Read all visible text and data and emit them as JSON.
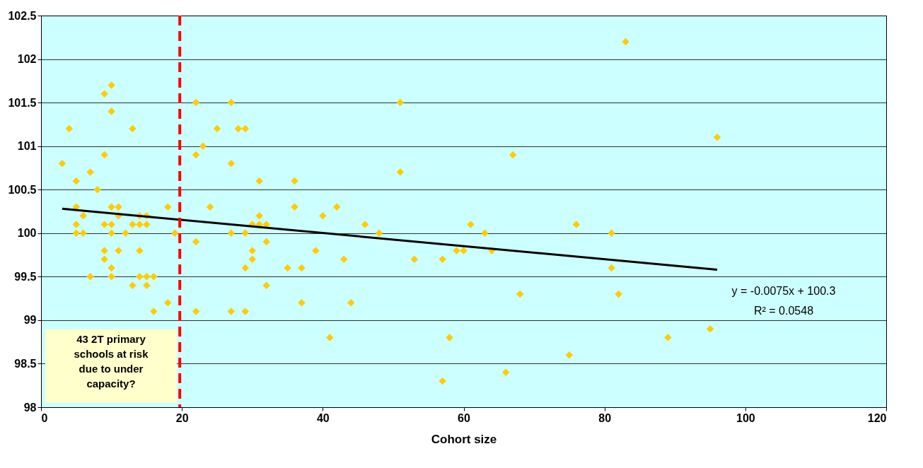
{
  "chart_data": {
    "type": "scatter",
    "xlabel": "Cohort size",
    "xlim": [
      0,
      120
    ],
    "xticks": [
      0,
      20,
      40,
      60,
      80,
      100,
      120
    ],
    "ylim": [
      98,
      102.5
    ],
    "yticks": [
      98,
      98.5,
      99,
      99.5,
      100,
      100.5,
      101,
      101.5,
      102,
      102.5
    ],
    "grid": "y",
    "marker": "diamond",
    "series": [
      {
        "color": "#ffcc00",
        "x": [
          3,
          4,
          5,
          5,
          5,
          5,
          6,
          6,
          7,
          7,
          8,
          9,
          9,
          9,
          9,
          9,
          10,
          10,
          10,
          10,
          10,
          10,
          10,
          11,
          11,
          11,
          12,
          13,
          13,
          13,
          14,
          14,
          14,
          14,
          15,
          15,
          15,
          15,
          16,
          16,
          18,
          18,
          19,
          22,
          22,
          22,
          22,
          23,
          24,
          25,
          27,
          27,
          27,
          27,
          28,
          29,
          29,
          29,
          29,
          30,
          30,
          30,
          31,
          31,
          31,
          32,
          32,
          32,
          35,
          36,
          36,
          37,
          37,
          39,
          40,
          41,
          42,
          43,
          44,
          46,
          48,
          51,
          51,
          53,
          57,
          57,
          58,
          59,
          60,
          61,
          63,
          64,
          66,
          67,
          68,
          75,
          76,
          81,
          81,
          82,
          83,
          89,
          95,
          96
        ],
        "values": [
          100.8,
          101.2,
          100.6,
          100.3,
          100.1,
          100,
          100.2,
          100,
          100.7,
          99.5,
          100.5,
          101.6,
          100.9,
          100.1,
          99.8,
          99.7,
          101.7,
          101.4,
          100.3,
          100.1,
          100,
          99.6,
          99.5,
          100.3,
          100.2,
          99.8,
          100,
          101.2,
          100.1,
          99.4,
          100.2,
          100.1,
          99.8,
          99.5,
          100.2,
          100.1,
          99.5,
          99.4,
          99.5,
          99.1,
          100.3,
          99.2,
          100,
          101.5,
          100.9,
          99.9,
          99.1,
          101,
          100.3,
          101.2,
          101.5,
          100.8,
          100,
          99.1,
          101.2,
          101.2,
          100,
          99.6,
          99.1,
          100.1,
          99.8,
          99.7,
          100.6,
          100.2,
          100.1,
          100.1,
          99.9,
          99.4,
          99.6,
          100.6,
          100.3,
          99.6,
          99.2,
          99.8,
          100.2,
          98.8,
          100.3,
          99.7,
          99.2,
          100.1,
          100,
          101.5,
          100.7,
          99.7,
          99.7,
          98.3,
          98.8,
          99.8,
          99.8,
          100.1,
          100,
          99.8,
          98.4,
          100.9,
          99.3,
          98.6,
          100.1,
          100,
          99.6,
          99.3,
          102.2,
          98.8,
          98.9,
          101.1
        ]
      },
      {
        "type": "line",
        "marker": "none",
        "color": "#000000",
        "x": [
          3,
          96
        ],
        "values": [
          100.28,
          99.58
        ]
      }
    ],
    "ref_lines": [
      {
        "axis": "x",
        "value": 19.7,
        "color": "#ff0000",
        "line_style": "dashed"
      }
    ],
    "annotations": [
      "43  2T primary schools at risk due to under capacity?",
      "y = -0.0075x + 100.3",
      "R² = 0.0548"
    ]
  }
}
